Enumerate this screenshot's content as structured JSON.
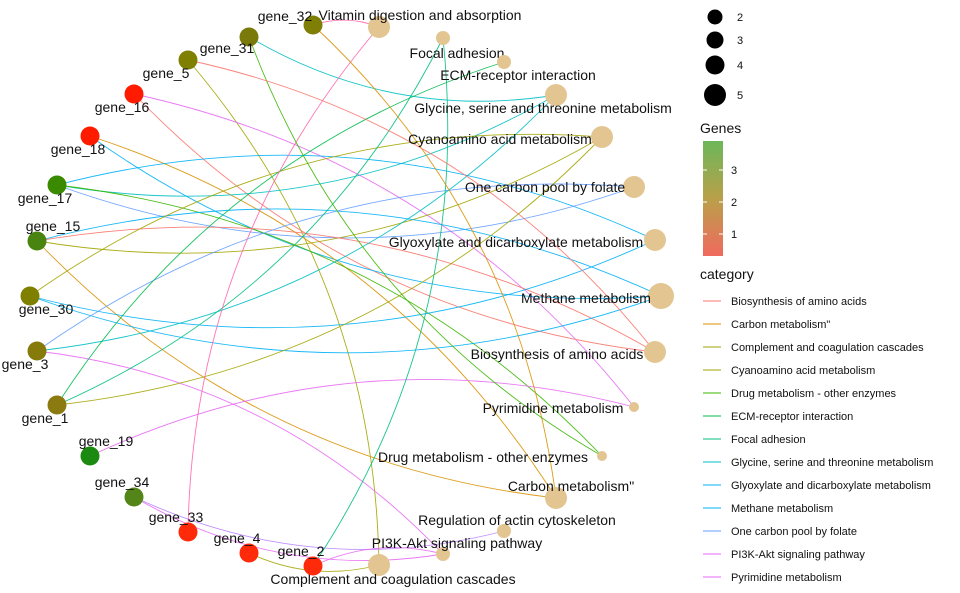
{
  "genes": [
    {
      "id": "gene_32",
      "label": "gene_32",
      "color": "#7f7f05"
    },
    {
      "id": "gene_31",
      "label": "gene_31",
      "color": "#7a7a0a"
    },
    {
      "id": "gene_5",
      "label": "gene_5",
      "color": "#808000"
    },
    {
      "id": "gene_16",
      "label": "gene_16",
      "color": "#ff1b00"
    },
    {
      "id": "gene_18",
      "label": "gene_18",
      "color": "#ff1b00"
    },
    {
      "id": "gene_17",
      "label": "gene_17",
      "color": "#3a8a00"
    },
    {
      "id": "gene_15",
      "label": "gene_15",
      "color": "#4a8410"
    },
    {
      "id": "gene_30",
      "label": "gene_30",
      "color": "#808000"
    },
    {
      "id": "gene_3",
      "label": "gene_3",
      "color": "#857a0a"
    },
    {
      "id": "gene_1",
      "label": "gene_1",
      "color": "#8a7a10"
    },
    {
      "id": "gene_19",
      "label": "gene_19",
      "color": "#1c8a10"
    },
    {
      "id": "gene_34",
      "label": "gene_34",
      "color": "#548518"
    },
    {
      "id": "gene_33",
      "label": "gene_33",
      "color": "#ff2a0a"
    },
    {
      "id": "gene_4",
      "label": "gene_4",
      "color": "#ff2a0a"
    },
    {
      "id": "gene_2",
      "label": "gene_2",
      "color": "#ff2a0a"
    }
  ],
  "categories": [
    {
      "id": "vit",
      "label": "Vitamin digestion and absorption",
      "size": 4
    },
    {
      "id": "focal",
      "label": "Focal adhesion",
      "size": 2
    },
    {
      "id": "ecm",
      "label": "ECM-receptor interaction",
      "size": 2
    },
    {
      "id": "gly",
      "label": "Glycine, serine and threonine metabolism",
      "size": 4
    },
    {
      "id": "cyano",
      "label": "Cyanoamino acid metabolism",
      "size": 4
    },
    {
      "id": "onec",
      "label": "One carbon pool by folate",
      "size": 4
    },
    {
      "id": "glyox",
      "label": "Glyoxylate and dicarboxylate metabolism",
      "size": 4
    },
    {
      "id": "meth",
      "label": "Methane metabolism",
      "size": 5
    },
    {
      "id": "bio",
      "label": "Biosynthesis of amino acids",
      "size": 4
    },
    {
      "id": "pyr",
      "label": "Pyrimidine metabolism",
      "size": 1
    },
    {
      "id": "drug",
      "label": "Drug metabolism - other enzymes",
      "size": 1
    },
    {
      "id": "carb",
      "label": "Carbon metabolism\"",
      "size": 4
    },
    {
      "id": "reg",
      "label": "Regulation of actin cytoskeleton",
      "size": 2
    },
    {
      "id": "pi3k",
      "label": "PI3K-Akt signaling pathway",
      "size": 2
    },
    {
      "id": "comp",
      "label": "Complement and coagulation cascades",
      "size": 4
    }
  ],
  "edges": [
    [
      "gene_32",
      "vit"
    ],
    [
      "gene_31",
      "gly"
    ],
    [
      "gene_5",
      "comp"
    ],
    [
      "gene_16",
      "bio"
    ],
    [
      "gene_16",
      "pyr"
    ],
    [
      "gene_18",
      "meth"
    ],
    [
      "gene_18",
      "carb"
    ],
    [
      "gene_17",
      "gly"
    ],
    [
      "gene_17",
      "glyox"
    ],
    [
      "gene_17",
      "onec"
    ],
    [
      "gene_17",
      "drug"
    ],
    [
      "gene_15",
      "cyano"
    ],
    [
      "gene_15",
      "meth"
    ],
    [
      "gene_15",
      "carb"
    ],
    [
      "gene_15",
      "bio"
    ],
    [
      "gene_30",
      "meth"
    ],
    [
      "gene_30",
      "cyano"
    ],
    [
      "gene_30",
      "glyox"
    ],
    [
      "gene_3",
      "onec"
    ],
    [
      "gene_3",
      "gly"
    ],
    [
      "gene_3",
      "pi3k"
    ],
    [
      "gene_1",
      "focal"
    ],
    [
      "gene_1",
      "ecm"
    ],
    [
      "gene_1",
      "cyano"
    ],
    [
      "gene_19",
      "pyr"
    ],
    [
      "gene_34",
      "reg"
    ],
    [
      "gene_33",
      "vit"
    ],
    [
      "gene_4",
      "comp"
    ],
    [
      "gene_2",
      "pi3k"
    ],
    [
      "gene_2",
      "focal"
    ],
    [
      "gene_32",
      "carb"
    ],
    [
      "gene_31",
      "drug"
    ],
    [
      "gene_5",
      "bio"
    ],
    [
      "gene_34",
      "pi3k"
    ]
  ],
  "legend": {
    "size_values": [
      "2",
      "3",
      "4",
      "5"
    ],
    "genes_title": "Genes",
    "genes_ticks": [
      "3",
      "2",
      "1"
    ],
    "genes_colors": [
      "#6cb75a",
      "#b9a04a",
      "#f06a5e"
    ],
    "category_title": "category",
    "category_items": [
      {
        "label": "Biosynthesis of amino acids",
        "color": "#f8766d"
      },
      {
        "label": "Carbon metabolism\"",
        "color": "#d89000"
      },
      {
        "label": "Complement and coagulation cascades",
        "color": "#a3a500"
      },
      {
        "label": "Cyanoamino acid metabolism",
        "color": "#a3a500"
      },
      {
        "label": "Drug metabolism - other enzymes",
        "color": "#39b600"
      },
      {
        "label": "ECM-receptor interaction",
        "color": "#00bb4e"
      },
      {
        "label": "Focal adhesion",
        "color": "#00bf7d"
      },
      {
        "label": "Glycine, serine and threonine metabolism",
        "color": "#00bfc4"
      },
      {
        "label": "Glyoxylate and dicarboxylate metabolism",
        "color": "#00b0f6"
      },
      {
        "label": "Methane metabolism",
        "color": "#00b0f6"
      },
      {
        "label": "One carbon pool by folate",
        "color": "#619cff"
      },
      {
        "label": "PI3K-Akt signaling pathway",
        "color": "#e76bf3"
      },
      {
        "label": "Pyrimidine metabolism",
        "color": "#e76bf3"
      }
    ]
  },
  "colors": {
    "category_node": "#e3c592",
    "vit": "#ff65ac",
    "focal": "#00bf7d",
    "ecm": "#00bb4e",
    "gly": "#00bfc4",
    "cyano": "#a3a500",
    "onec": "#619cff",
    "glyox": "#00b0f6",
    "meth": "#00b0f6",
    "bio": "#f8766d",
    "pyr": "#e76bf3",
    "drug": "#39b600",
    "carb": "#d89000",
    "reg": "#b983ff",
    "pi3k": "#e76bf3",
    "comp": "#a3a500"
  }
}
